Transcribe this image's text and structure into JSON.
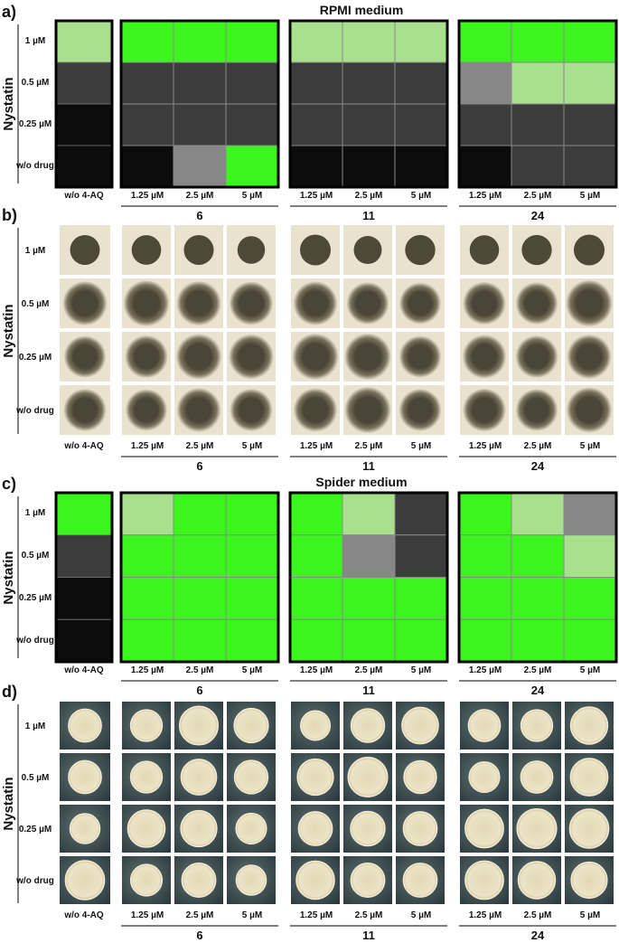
{
  "panels": [
    {
      "label": "a)",
      "title": "RPMI medium",
      "y_label": "Nystatin",
      "row_labels": [
        "1 µM",
        "0.5 µM",
        "0.25 µM",
        "w/o drug"
      ],
      "control": {
        "label": "w/o 4-AQ",
        "cells": [
          "#a8e08e",
          "#3c3c3c",
          "#0c0c0c",
          "#0c0c0c"
        ]
      },
      "groups": [
        {
          "compound": "6",
          "column_labels": [
            "1.25 µM",
            "2.5 µM",
            "5 µM"
          ],
          "cells": [
            [
              "#3cf51e",
              "#3cf51e",
              "#3cf51e"
            ],
            [
              "#3c3c3c",
              "#3c3c3c",
              "#3c3c3c"
            ],
            [
              "#3c3c3c",
              "#3c3c3c",
              "#3c3c3c"
            ],
            [
              "#0c0c0c",
              "#878787",
              "#3cf51e"
            ]
          ]
        },
        {
          "compound": "11",
          "column_labels": [
            "1.25 µM",
            "2.5 µM",
            "5 µM"
          ],
          "cells": [
            [
              "#a8e08e",
              "#a8e08e",
              "#a8e08e"
            ],
            [
              "#3c3c3c",
              "#3c3c3c",
              "#3c3c3c"
            ],
            [
              "#3c3c3c",
              "#3c3c3c",
              "#3c3c3c"
            ],
            [
              "#0c0c0c",
              "#0c0c0c",
              "#0c0c0c"
            ]
          ]
        },
        {
          "compound": "24",
          "column_labels": [
            "1.25 µM",
            "2.5 µM",
            "5 µM"
          ],
          "cells": [
            [
              "#3cf51e",
              "#3cf51e",
              "#3cf51e"
            ],
            [
              "#878787",
              "#a8e08e",
              "#a8e08e"
            ],
            [
              "#3c3c3c",
              "#3c3c3c",
              "#3c3c3c"
            ],
            [
              "#0c0c0c",
              "#3c3c3c",
              "#3c3c3c"
            ]
          ]
        }
      ]
    },
    {
      "label": "b)",
      "y_label": "Nystatin",
      "row_labels": [
        "1 µM",
        "0.5 µM",
        "0.25 µM",
        "w/o drug"
      ],
      "control": {
        "label": "w/o 4-AQ"
      },
      "groups": [
        {
          "compound": "6",
          "column_labels": [
            "1.25 µM",
            "2.5 µM",
            "5 µM"
          ]
        },
        {
          "compound": "11",
          "column_labels": [
            "1.25 µM",
            "2.5 µM",
            "5 µM"
          ]
        },
        {
          "compound": "24",
          "column_labels": [
            "1.25 µM",
            "2.5 µM",
            "5 µM"
          ]
        }
      ]
    },
    {
      "label": "c)",
      "title": "Spider medium",
      "y_label": "Nystatin",
      "row_labels": [
        "1 µM",
        "0.5 µM",
        "0.25 µM",
        "w/o drug"
      ],
      "control": {
        "label": "w/o 4-AQ",
        "cells": [
          "#3cf51e",
          "#3c3c3c",
          "#0c0c0c",
          "#0c0c0c"
        ]
      },
      "groups": [
        {
          "compound": "6",
          "column_labels": [
            "1.25 µM",
            "2.5 µM",
            "5 µM"
          ],
          "cells": [
            [
              "#a8e08e",
              "#3cf51e",
              "#3cf51e"
            ],
            [
              "#3cf51e",
              "#3cf51e",
              "#3cf51e"
            ],
            [
              "#3cf51e",
              "#3cf51e",
              "#3cf51e"
            ],
            [
              "#3cf51e",
              "#3cf51e",
              "#3cf51e"
            ]
          ]
        },
        {
          "compound": "11",
          "column_labels": [
            "1.25 µM",
            "2.5 µM",
            "5 µM"
          ],
          "cells": [
            [
              "#3cf51e",
              "#a8e08e",
              "#3c3c3c"
            ],
            [
              "#3cf51e",
              "#878787",
              "#3c3c3c"
            ],
            [
              "#3cf51e",
              "#3cf51e",
              "#3cf51e"
            ],
            [
              "#3cf51e",
              "#3cf51e",
              "#3cf51e"
            ]
          ]
        },
        {
          "compound": "24",
          "column_labels": [
            "1.25 µM",
            "2.5 µM",
            "5 µM"
          ],
          "cells": [
            [
              "#3cf51e",
              "#a8e08e",
              "#878787"
            ],
            [
              "#3cf51e",
              "#3cf51e",
              "#a8e08e"
            ],
            [
              "#3cf51e",
              "#3cf51e",
              "#3cf51e"
            ],
            [
              "#3cf51e",
              "#3cf51e",
              "#3cf51e"
            ]
          ]
        }
      ]
    },
    {
      "label": "d)",
      "y_label": "Nystatin",
      "row_labels": [
        "1 µM",
        "0.5 µM",
        "0.25 µM",
        "w/o drug"
      ],
      "control": {
        "label": "w/o 4-AQ"
      },
      "groups": [
        {
          "compound": "6",
          "column_labels": [
            "1.25 µM",
            "2.5 µM",
            "5 µM"
          ]
        },
        {
          "compound": "11",
          "column_labels": [
            "1.25 µM",
            "2.5 µM",
            "5 µM"
          ]
        },
        {
          "compound": "24",
          "column_labels": [
            "1.25 µM",
            "2.5 µM",
            "5 µM"
          ]
        }
      ]
    }
  ]
}
